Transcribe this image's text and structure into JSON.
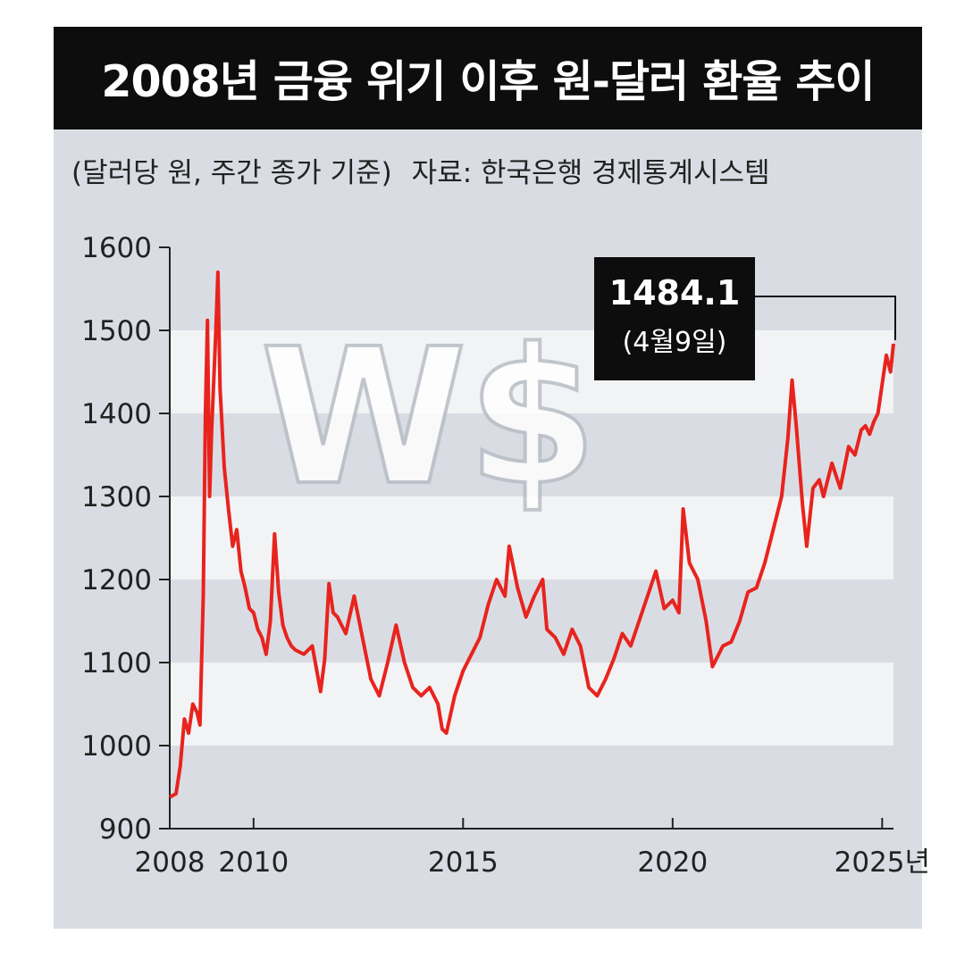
{
  "title": "2008년 금융 위기 이후 원-달러 환율 추이",
  "subtitle": "(달러당 원, 주간 종가 기준)",
  "source": "자료: 한국은행 경제통계시스템",
  "watermark": "W$",
  "callout": {
    "value": "1484.1",
    "date": "(4월9일)"
  },
  "colors": {
    "line": "#e8231e",
    "title_bg": "#0d0d0d",
    "panel_bg": "#d9dde3",
    "band": "#f2f3f5"
  },
  "chart_data": {
    "type": "line",
    "title": "2008년 금융 위기 이후 원-달러 환율 추이",
    "ylabel": "(달러당 원, 주간 종가 기준)",
    "xlabel": "",
    "ylim": [
      900,
      1600
    ],
    "xlim": [
      2008,
      2025.27
    ],
    "yticks": [
      900,
      1000,
      1100,
      1200,
      1300,
      1400,
      1500,
      1600
    ],
    "xticks": [
      {
        "value": 2008,
        "label": "2008"
      },
      {
        "value": 2010,
        "label": "2010"
      },
      {
        "value": 2015,
        "label": "2015"
      },
      {
        "value": 2020,
        "label": "2020"
      },
      {
        "value": 2025,
        "label": "2025년"
      }
    ],
    "grid": "horizontal bands",
    "legend": "none",
    "x": [
      2008.0,
      2008.15,
      2008.25,
      2008.35,
      2008.45,
      2008.55,
      2008.65,
      2008.72,
      2008.8,
      2008.85,
      2008.9,
      2008.95,
      2009.0,
      2009.1,
      2009.15,
      2009.2,
      2009.3,
      2009.4,
      2009.5,
      2009.6,
      2009.7,
      2009.8,
      2009.9,
      2010.0,
      2010.1,
      2010.2,
      2010.3,
      2010.4,
      2010.5,
      2010.6,
      2010.7,
      2010.8,
      2010.9,
      2011.0,
      2011.2,
      2011.4,
      2011.6,
      2011.7,
      2011.8,
      2011.9,
      2012.0,
      2012.2,
      2012.4,
      2012.6,
      2012.8,
      2013.0,
      2013.2,
      2013.4,
      2013.6,
      2013.8,
      2014.0,
      2014.2,
      2014.4,
      2014.5,
      2014.6,
      2014.8,
      2015.0,
      2015.2,
      2015.4,
      2015.6,
      2015.8,
      2016.0,
      2016.1,
      2016.3,
      2016.5,
      2016.7,
      2016.9,
      2017.0,
      2017.2,
      2017.4,
      2017.6,
      2017.8,
      2018.0,
      2018.2,
      2018.4,
      2018.6,
      2018.8,
      2019.0,
      2019.2,
      2019.4,
      2019.6,
      2019.8,
      2020.0,
      2020.15,
      2020.25,
      2020.4,
      2020.6,
      2020.8,
      2020.95,
      2021.2,
      2021.4,
      2021.6,
      2021.8,
      2022.0,
      2022.2,
      2022.4,
      2022.6,
      2022.75,
      2022.85,
      2022.95,
      2023.1,
      2023.2,
      2023.35,
      2023.5,
      2023.6,
      2023.8,
      2024.0,
      2024.2,
      2024.35,
      2024.5,
      2024.6,
      2024.7,
      2024.8,
      2024.9,
      2025.0,
      2025.1,
      2025.2,
      2025.27
    ],
    "values": [
      938,
      942,
      975,
      1032,
      1015,
      1050,
      1040,
      1025,
      1180,
      1400,
      1512,
      1300,
      1380,
      1500,
      1570,
      1430,
      1335,
      1285,
      1240,
      1260,
      1210,
      1190,
      1165,
      1160,
      1140,
      1130,
      1110,
      1150,
      1255,
      1185,
      1145,
      1130,
      1120,
      1115,
      1110,
      1120,
      1065,
      1105,
      1195,
      1160,
      1155,
      1135,
      1180,
      1130,
      1080,
      1060,
      1100,
      1145,
      1100,
      1070,
      1060,
      1070,
      1050,
      1020,
      1015,
      1060,
      1090,
      1110,
      1130,
      1170,
      1200,
      1180,
      1240,
      1190,
      1155,
      1180,
      1200,
      1140,
      1130,
      1110,
      1140,
      1120,
      1070,
      1060,
      1080,
      1105,
      1135,
      1120,
      1150,
      1180,
      1210,
      1165,
      1175,
      1160,
      1285,
      1220,
      1200,
      1150,
      1095,
      1120,
      1125,
      1150,
      1185,
      1190,
      1220,
      1260,
      1300,
      1370,
      1440,
      1385,
      1290,
      1240,
      1310,
      1320,
      1300,
      1340,
      1310,
      1360,
      1350,
      1380,
      1385,
      1375,
      1390,
      1400,
      1435,
      1470,
      1450,
      1484
    ]
  }
}
